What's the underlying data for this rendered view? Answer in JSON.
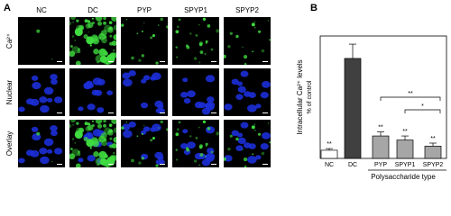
{
  "panel_a": {
    "label": "A",
    "columns": [
      "NC",
      "DC",
      "PYP",
      "SPYP1",
      "SPYP2"
    ],
    "rows": [
      "Ca²⁺",
      "Nuclear",
      "Overlay"
    ]
  },
  "chart_data": {
    "type": "bar",
    "panel_label": "B",
    "y_label": [
      "Intracellular Ca²⁺ levels",
      "% of control"
    ],
    "x_label": "Polysaccharide type",
    "categories": [
      "NC",
      "DC",
      "PYP",
      "SPYP1",
      "SPYP2"
    ],
    "values": [
      4,
      49,
      11,
      9,
      6
    ],
    "errors": [
      0.8,
      7,
      2,
      2,
      1.5
    ],
    "colors": [
      "#ffffff",
      "#404040",
      "#a6a6a6",
      "#a6a6a6",
      "#a6a6a6"
    ],
    "significance": [
      "**",
      null,
      "**",
      "**",
      "**"
    ],
    "comparisons": [
      {
        "from": 2,
        "to": 4,
        "label": "**"
      },
      {
        "from": 3,
        "to": 4,
        "label": "*"
      }
    ],
    "ylim": [
      0,
      60
    ]
  }
}
